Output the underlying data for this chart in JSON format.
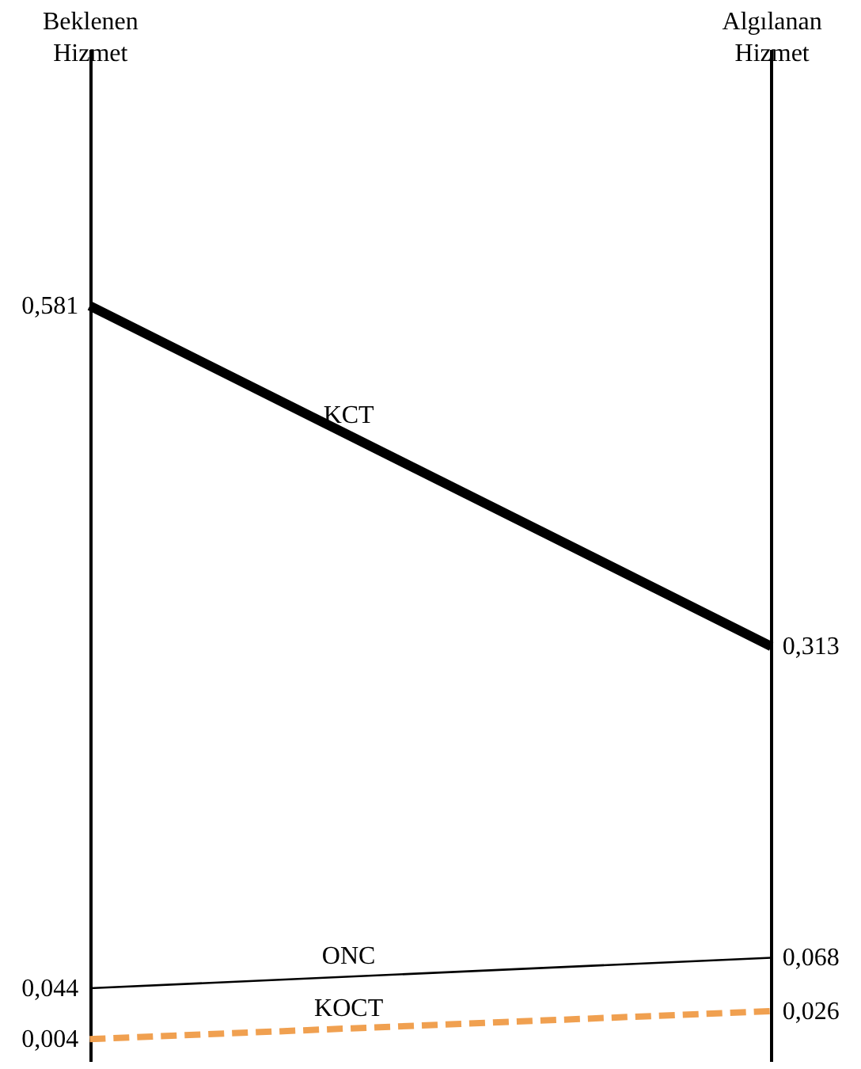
{
  "chart_data": {
    "type": "line",
    "categories": [
      "Beklenen Hizmet",
      "Algılanan Hizmet"
    ],
    "series": [
      {
        "name": "KCT",
        "color": "#000000",
        "values": [
          0.581,
          0.313
        ],
        "value_labels": [
          "0,581",
          "0,313"
        ]
      },
      {
        "name": "ONC",
        "color": "#000000",
        "values": [
          0.044,
          0.068
        ],
        "value_labels": [
          "0,044",
          "0,068"
        ]
      },
      {
        "name": "KOCT",
        "color": "#f0a050",
        "values": [
          0.004,
          0.026
        ],
        "value_labels": [
          "0,004",
          "0,026"
        ],
        "line_style": "dashed"
      }
    ],
    "grid": "x",
    "marker": "none",
    "tick_labels": "x"
  }
}
